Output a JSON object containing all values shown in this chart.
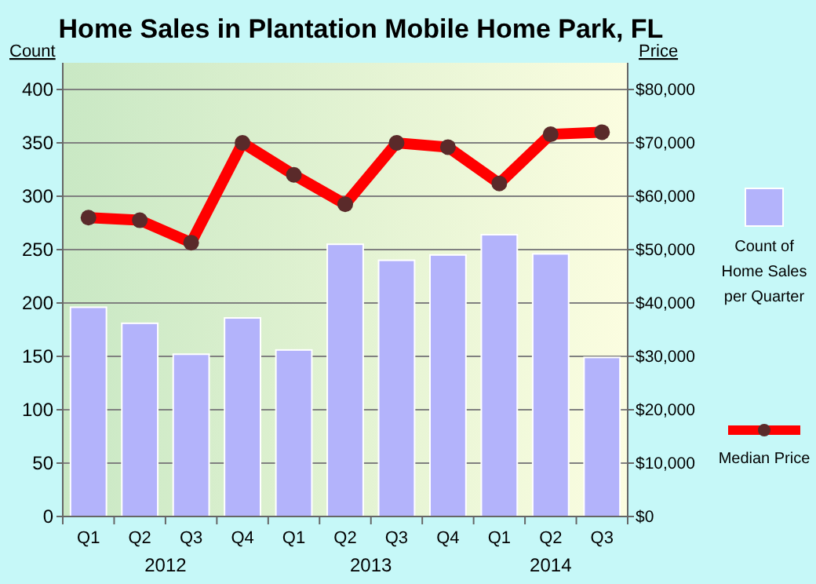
{
  "chart_data": {
    "type": "bar",
    "title": "Home Sales in Plantation Mobile Home Park, FL",
    "ylabel": "Count",
    "y2label": "Price",
    "categories": [
      "Q1",
      "Q2",
      "Q3",
      "Q4",
      "Q1",
      "Q2",
      "Q3",
      "Q4",
      "Q1",
      "Q2",
      "Q3"
    ],
    "series": [
      {
        "name": "Count of Home Sales per Quarter",
        "color": "#b3b3fb",
        "values": [
          196,
          181,
          152,
          186,
          156,
          255,
          240,
          245,
          264,
          246,
          149
        ]
      },
      {
        "name": "Median Price",
        "type": "line",
        "axis": "y2",
        "color": "#ff0000",
        "marker": "circle",
        "values": [
          56000,
          55500,
          51300,
          70000,
          64000,
          58500,
          70000,
          69200,
          62400,
          71600,
          72000
        ]
      }
    ],
    "ylim": [
      0,
      425
    ],
    "yticks": [
      0,
      50,
      100,
      150,
      200,
      250,
      300,
      350,
      400
    ],
    "y2lim": [
      0,
      85000
    ],
    "y2ticks": [
      {
        "value": 0,
        "label": "$0"
      },
      {
        "value": 10000,
        "label": "$10,000"
      },
      {
        "value": 20000,
        "label": "$20,000"
      },
      {
        "value": 30000,
        "label": "$30,000"
      },
      {
        "value": 40000,
        "label": "$40,000"
      },
      {
        "value": 50000,
        "label": "$50,000"
      },
      {
        "value": 60000,
        "label": "$60,000"
      },
      {
        "value": 70000,
        "label": "$70,000"
      },
      {
        "value": 80000,
        "label": "$80,000"
      }
    ],
    "grid": "y",
    "legend": "right",
    "annotations": [
      "2012",
      "2013",
      "2014"
    ]
  }
}
